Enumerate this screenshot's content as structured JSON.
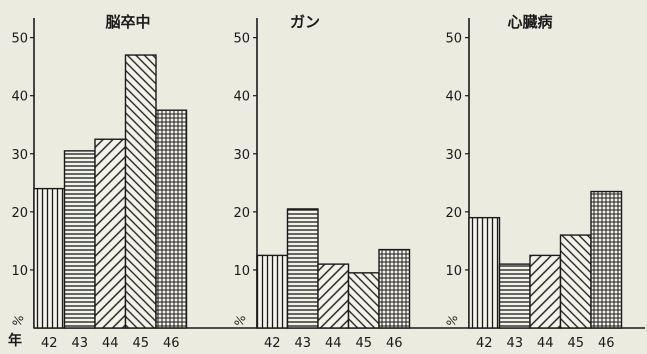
{
  "chart_data": [
    {
      "type": "bar",
      "title": "脳卒中",
      "categories": [
        "42",
        "43",
        "44",
        "45",
        "46"
      ],
      "values": [
        24,
        30.5,
        32.5,
        47,
        37.5
      ],
      "ylim": [
        0,
        50
      ],
      "yticks": [
        "10",
        "20",
        "30",
        "40",
        "50"
      ],
      "unit": "%",
      "year_label": "年"
    },
    {
      "type": "bar",
      "title": "ガン",
      "categories": [
        "42",
        "43",
        "44",
        "45",
        "46"
      ],
      "values": [
        12.5,
        20.5,
        11,
        9.5,
        13.5
      ],
      "ylim": [
        0,
        50
      ],
      "yticks": [
        "10",
        "20",
        "30",
        "40",
        "50"
      ],
      "unit": "%",
      "year_label": ""
    },
    {
      "type": "bar",
      "title": "心臓病",
      "categories": [
        "42",
        "43",
        "44",
        "45",
        "46"
      ],
      "values": [
        19,
        11,
        12.5,
        16,
        23.5
      ],
      "ylim": [
        0,
        50
      ],
      "yticks": [
        "10",
        "20",
        "30",
        "40",
        "50"
      ],
      "unit": "%",
      "year_label": ""
    }
  ],
  "colors": {
    "ink": "#1a1a1a",
    "background": "#ecebe0",
    "bar_fill": "#f4f3ea"
  },
  "patterns": [
    "vertical-lines",
    "horizontal-lines",
    "diagonal-lines",
    "reverse-diagonal-lines",
    "grid"
  ]
}
